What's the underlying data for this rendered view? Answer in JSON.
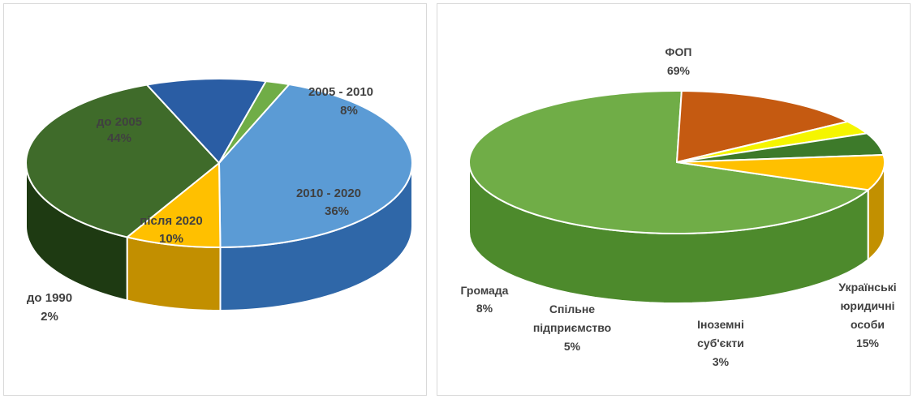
{
  "chart_data": [
    {
      "type": "pie",
      "style": "3d",
      "legend": "none",
      "categories": [
        "до 2005",
        "2005 - 2010",
        "2010 - 2020",
        "після 2020",
        "до 1990"
      ],
      "values": [
        44,
        8,
        36,
        10,
        2
      ],
      "percent_labels": [
        "44%",
        "8%",
        "36%",
        "10%",
        "2%"
      ],
      "colors": [
        "#5b9bd5",
        "#ffc000",
        "#3f6b2a",
        "#2a5da4",
        "#70ad47"
      ],
      "side_colors": [
        "#2f67a8",
        "#c28f00",
        "#1e3a12",
        "#1a3c70",
        "#4a7d2c"
      ]
    },
    {
      "type": "pie",
      "style": "3d",
      "legend": "none",
      "categories": [
        "ФОП",
        "Українські юридичні особи",
        "Іноземні суб'єкти",
        "Спільне підприємство",
        "Громада"
      ],
      "label_lines": [
        [
          "ФОП"
        ],
        [
          "Українські",
          "юридичні",
          "особи"
        ],
        [
          "Іноземні",
          "суб'єкти"
        ],
        [
          "Спільне",
          "підприємство"
        ],
        [
          "Громада"
        ]
      ],
      "values": [
        69,
        15,
        3,
        5,
        8
      ],
      "percent_labels": [
        "69%",
        "15%",
        "3%",
        "5%",
        "8%"
      ],
      "colors": [
        "#70ad47",
        "#c55a11",
        "#f5f500",
        "#3d7a2a",
        "#ffc000"
      ],
      "side_colors": [
        "#4d8a2c",
        "#7a2d05",
        "#b5b000",
        "#1f4a14",
        "#c29000"
      ]
    }
  ]
}
